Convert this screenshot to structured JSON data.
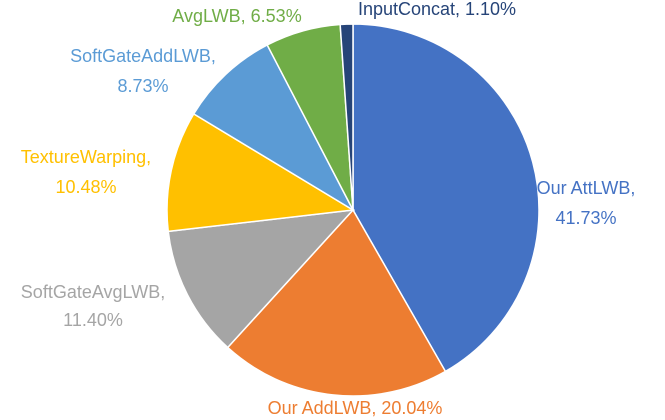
{
  "chart_data": {
    "type": "pie",
    "title": "",
    "slices": [
      {
        "name": "Our AttLWB",
        "value": 41.73,
        "pct_label": "41.73%",
        "color": "#4472C4"
      },
      {
        "name": "Our AddLWB",
        "value": 20.04,
        "pct_label": "20.04%",
        "color": "#ED7D31"
      },
      {
        "name": "SoftGateAvgLWB",
        "value": 11.4,
        "pct_label": "11.40%",
        "color": "#A5A5A5"
      },
      {
        "name": "TextureWarping",
        "value": 10.48,
        "pct_label": "10.48%",
        "color": "#FFC000"
      },
      {
        "name": "SoftGateAddLWB",
        "value": 8.73,
        "pct_label": "8.73%",
        "color": "#5B9BD5"
      },
      {
        "name": "AvgLWB",
        "value": 6.53,
        "pct_label": "6.53%",
        "color": "#70AD47"
      },
      {
        "name": "InputConcat",
        "value": 1.1,
        "pct_label": "1.10%",
        "color": "#264478"
      }
    ]
  }
}
